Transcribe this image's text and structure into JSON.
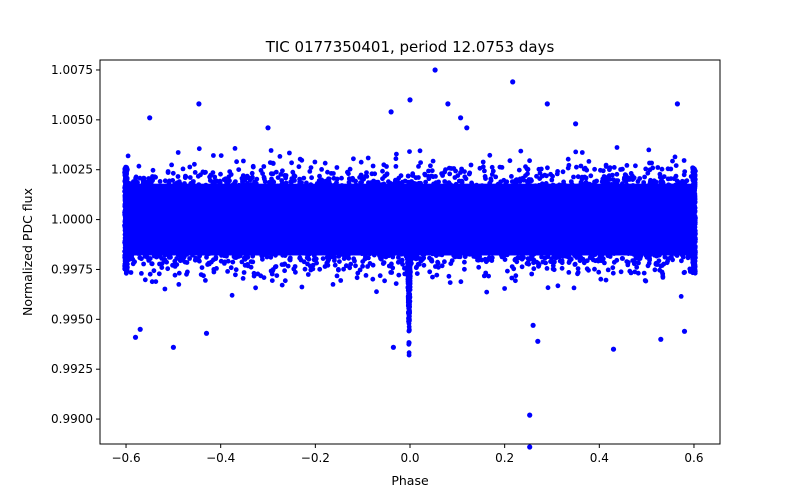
{
  "chart_data": {
    "type": "scatter",
    "title": "TIC 0177350401, period 12.0753 days",
    "xlabel": "Phase",
    "ylabel": "Normalized PDC flux",
    "xlim": [
      -0.655,
      0.655
    ],
    "ylim": [
      0.98875,
      1.008
    ],
    "x_ticks": [
      -0.6,
      -0.4,
      -0.2,
      0.0,
      0.2,
      0.4,
      0.6
    ],
    "x_tick_labels": [
      "−0.6",
      "−0.4",
      "−0.2",
      "0.0",
      "0.2",
      "0.4",
      "0.6"
    ],
    "y_ticks": [
      0.99,
      0.9925,
      0.995,
      0.9975,
      1.0,
      1.0025,
      1.005,
      1.0075
    ],
    "y_tick_labels": [
      "0.9900",
      "0.9925",
      "0.9950",
      "0.9975",
      "1.0000",
      "1.0025",
      "1.0050",
      "1.0075"
    ],
    "marker_color": "#0000ff",
    "band": {
      "x_range": [
        -0.6,
        0.6
      ],
      "center": 1.0,
      "core_half_width": 0.0018,
      "sigma": 0.0011
    },
    "transit": {
      "phase_center": -0.002,
      "depth_min": 0.9928,
      "half_width": 0.006
    },
    "outliers": {
      "x": [
        0.053,
        0.217,
        -0.446,
        0.08,
        0.107,
        -0.55,
        0.565,
        0.29,
        -0.04,
        0.0,
        0.12,
        0.35,
        -0.3,
        0.253,
        0.253,
        -0.035,
        -0.58,
        -0.57,
        0.26,
        -0.5,
        0.53,
        0.58,
        0.43,
        0.27,
        -0.43
      ],
      "y": [
        1.0075,
        1.0069,
        1.0058,
        1.0058,
        1.0051,
        1.0051,
        1.0058,
        1.0058,
        1.0054,
        1.006,
        1.0046,
        1.0048,
        1.0046,
        0.9902,
        0.9886,
        0.9936,
        0.9941,
        0.9945,
        0.9947,
        0.9936,
        0.994,
        0.9944,
        0.9935,
        0.9939,
        0.9943
      ]
    }
  }
}
